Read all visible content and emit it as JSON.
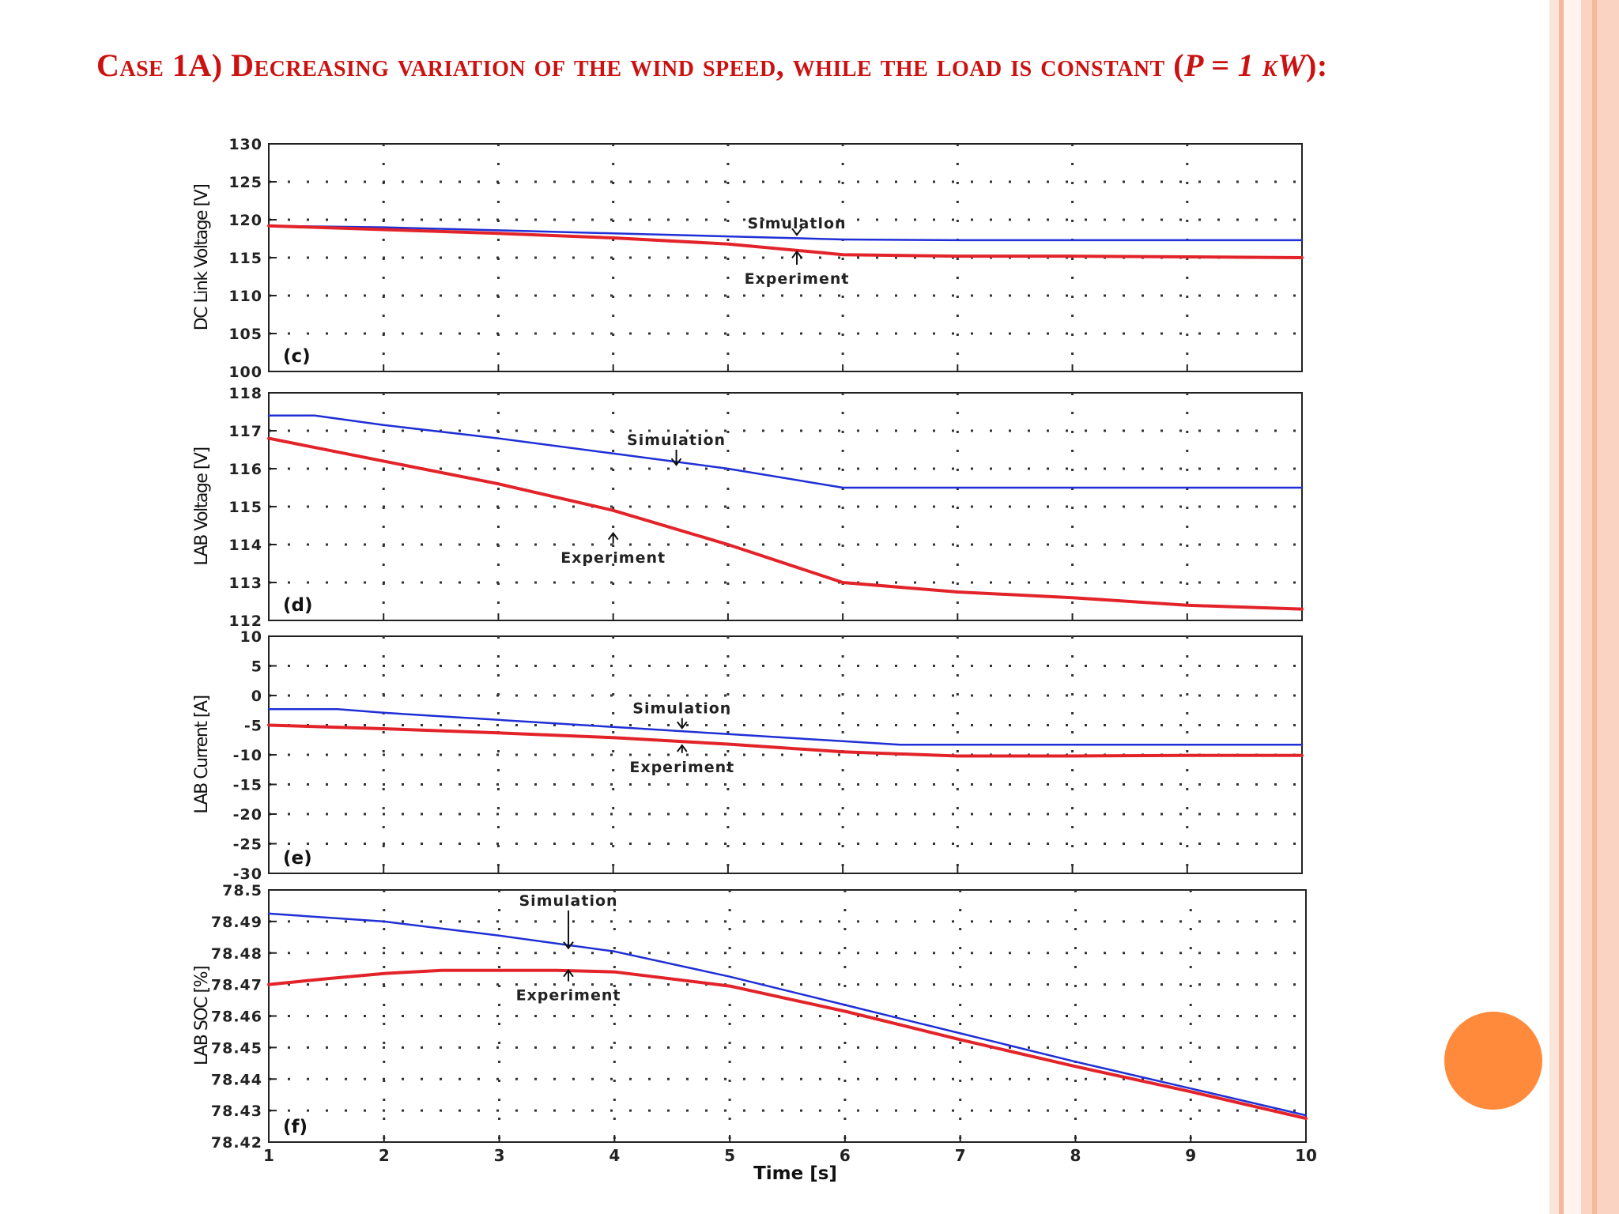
{
  "title": {
    "main": "Case 1A) Decreasing variation of the wind speed, while the load is constant (",
    "formula": "P = 1",
    "unit": " kW",
    "end": "):"
  },
  "colors": {
    "title": "#cc1111",
    "simulation": "#1f2fd6",
    "experiment": "#e2242a",
    "accent_circle": "#ff8a3c",
    "border_light": "#fde2d6",
    "border_mid": "#f7b89c"
  },
  "chart_data": [
    {
      "type": "line",
      "panel_label": "(c)",
      "ylabel": "DC Link Voltage [V]",
      "xlim": [
        1,
        10
      ],
      "ylim": [
        100,
        130
      ],
      "yticks": [
        100,
        105,
        110,
        115,
        120,
        125,
        130
      ],
      "grid": true,
      "series": [
        {
          "name": "Simulation",
          "x": [
            1,
            2,
            3,
            4,
            5,
            6,
            7,
            8,
            9,
            10
          ],
          "y": [
            119.2,
            119.0,
            118.6,
            118.2,
            117.8,
            117.4,
            117.3,
            117.3,
            117.3,
            117.3
          ]
        },
        {
          "name": "Experiment",
          "x": [
            1,
            2,
            3,
            4,
            5,
            6,
            7,
            8,
            9,
            10
          ],
          "y": [
            119.2,
            118.7,
            118.2,
            117.6,
            116.8,
            115.4,
            115.2,
            115.2,
            115.1,
            115.0
          ]
        }
      ],
      "annotations": [
        {
          "text": "Simulation",
          "x": 5.6,
          "y": 119.5,
          "arrow_to_y": 118.0,
          "direction": "down"
        },
        {
          "text": "Experiment",
          "x": 5.6,
          "y": 112.2,
          "arrow_to_y": 115.8,
          "direction": "up"
        }
      ]
    },
    {
      "type": "line",
      "panel_label": "(d)",
      "ylabel": "LAB Voltage [V]",
      "xlim": [
        1,
        10
      ],
      "ylim": [
        112,
        118
      ],
      "yticks": [
        112,
        113,
        114,
        115,
        116,
        117,
        118
      ],
      "grid": true,
      "series": [
        {
          "name": "Simulation",
          "x": [
            1,
            1.4,
            2,
            3,
            4,
            5,
            6,
            7,
            8,
            9,
            10
          ],
          "y": [
            117.4,
            117.4,
            117.15,
            116.8,
            116.4,
            116.0,
            115.5,
            115.5,
            115.5,
            115.5,
            115.5
          ]
        },
        {
          "name": "Experiment",
          "x": [
            1,
            2,
            3,
            4,
            5,
            6,
            7,
            8,
            9,
            10
          ],
          "y": [
            116.8,
            116.2,
            115.6,
            114.9,
            114.0,
            113.0,
            112.75,
            112.6,
            112.4,
            112.3
          ]
        }
      ],
      "annotations": [
        {
          "text": "Simulation",
          "x": 4.55,
          "y": 116.75,
          "arrow_to_y": 116.1,
          "direction": "down"
        },
        {
          "text": "Experiment",
          "x": 4.0,
          "y": 113.65,
          "arrow_to_y": 114.3,
          "direction": "up"
        }
      ]
    },
    {
      "type": "line",
      "panel_label": "(e)",
      "ylabel": "LAB Current [A]",
      "xlim": [
        1,
        10
      ],
      "ylim": [
        -30,
        10
      ],
      "yticks": [
        -30,
        -25,
        -20,
        -15,
        -10,
        -5,
        0,
        5,
        10
      ],
      "grid": true,
      "series": [
        {
          "name": "Simulation",
          "x": [
            1,
            1.6,
            2,
            3,
            4,
            5,
            6,
            6.5,
            7,
            8,
            9,
            10
          ],
          "y": [
            -2.3,
            -2.3,
            -2.9,
            -4.1,
            -5.3,
            -6.5,
            -7.7,
            -8.3,
            -8.3,
            -8.3,
            -8.3,
            -8.3
          ]
        },
        {
          "name": "Experiment",
          "x": [
            1,
            2,
            3,
            4,
            5,
            6,
            7,
            8,
            9,
            10
          ],
          "y": [
            -5.0,
            -5.6,
            -6.3,
            -7.1,
            -8.2,
            -9.5,
            -10.2,
            -10.2,
            -10.1,
            -10.1
          ]
        }
      ],
      "annotations": [
        {
          "text": "Simulation",
          "x": 4.6,
          "y": -2.2,
          "arrow_to_y": -5.5,
          "direction": "down"
        },
        {
          "text": "Experiment",
          "x": 4.6,
          "y": -12.1,
          "arrow_to_y": -8.4,
          "direction": "up"
        }
      ]
    },
    {
      "type": "line",
      "panel_label": "(f)",
      "ylabel": "LAB SOC [%]",
      "xlabel": "Time [s]",
      "xlim": [
        1,
        10
      ],
      "ylim": [
        78.42,
        78.5
      ],
      "yticks": [
        78.42,
        78.43,
        78.44,
        78.45,
        78.46,
        78.47,
        78.48,
        78.49,
        78.5
      ],
      "xticks": [
        1,
        2,
        3,
        4,
        5,
        6,
        7,
        8,
        9,
        10
      ],
      "grid": true,
      "series": [
        {
          "name": "Simulation",
          "x": [
            1,
            2,
            3,
            4,
            5,
            6,
            7,
            8,
            9,
            10
          ],
          "y": [
            78.4925,
            78.49,
            78.4855,
            78.4805,
            78.4725,
            78.4635,
            78.4545,
            78.4455,
            78.437,
            78.4285
          ]
        },
        {
          "name": "Experiment",
          "x": [
            1,
            1.5,
            2,
            2.5,
            3,
            3.5,
            4,
            5,
            6,
            7,
            8,
            9,
            10
          ],
          "y": [
            78.47,
            78.4718,
            78.4735,
            78.4745,
            78.4745,
            78.4745,
            78.474,
            78.4695,
            78.4615,
            78.4525,
            78.444,
            78.436,
            78.4275
          ]
        }
      ],
      "annotations": [
        {
          "text": "Simulation",
          "x": 3.6,
          "y": 78.4965,
          "arrow_to_y": 78.4815,
          "direction": "down"
        },
        {
          "text": "Experiment",
          "x": 3.6,
          "y": 78.4665,
          "arrow_to_y": 78.4745,
          "direction": "up"
        }
      ]
    }
  ]
}
